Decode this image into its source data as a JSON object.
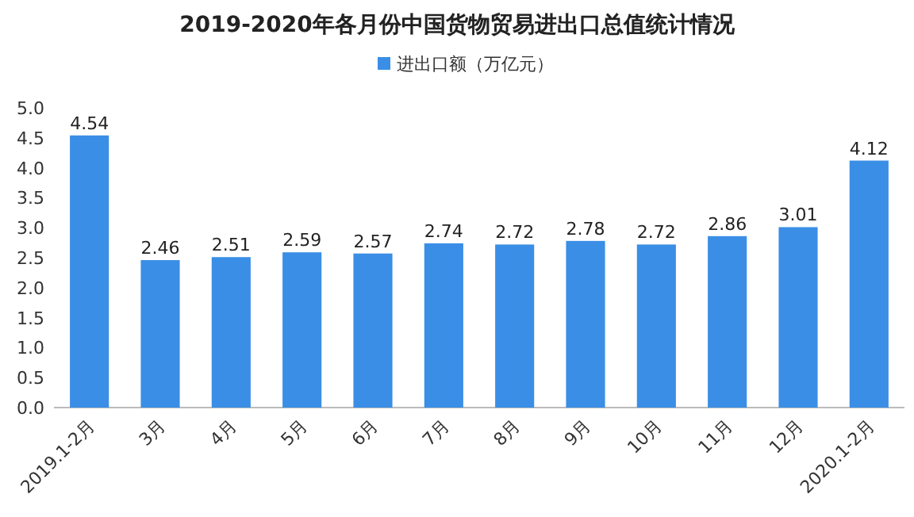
{
  "chart_data": {
    "type": "bar",
    "title": "2019-2020年各月份中国货物贸易进出口总值统计情况",
    "legend": "top",
    "categories": [
      "2019.1-2月",
      "3月",
      "4月",
      "5月",
      "6月",
      "7月",
      "8月",
      "9月",
      "10月",
      "11月",
      "12月",
      "2020.1-2月"
    ],
    "series": [
      {
        "name": "进出口额（万亿元）",
        "color": "#3a8ee6",
        "values": [
          4.54,
          2.46,
          2.51,
          2.59,
          2.57,
          2.74,
          2.72,
          2.78,
          2.72,
          2.86,
          3.01,
          4.12
        ]
      }
    ],
    "ylim": [
      0,
      5
    ],
    "yticks": [
      {
        "value": 0,
        "label": "0.0"
      },
      {
        "value": 0.5,
        "label": "0.5"
      },
      {
        "value": 1,
        "label": "1.0"
      },
      {
        "value": 1.5,
        "label": "1.5"
      },
      {
        "value": 2,
        "label": "2.0"
      },
      {
        "value": 2.5,
        "label": "2.5"
      },
      {
        "value": 3,
        "label": "3.0"
      },
      {
        "value": 3.5,
        "label": "3.5"
      },
      {
        "value": 4,
        "label": "4.0"
      },
      {
        "value": 4.5,
        "label": "4.5"
      },
      {
        "value": 5,
        "label": "5.0"
      }
    ],
    "data_labels": true
  }
}
